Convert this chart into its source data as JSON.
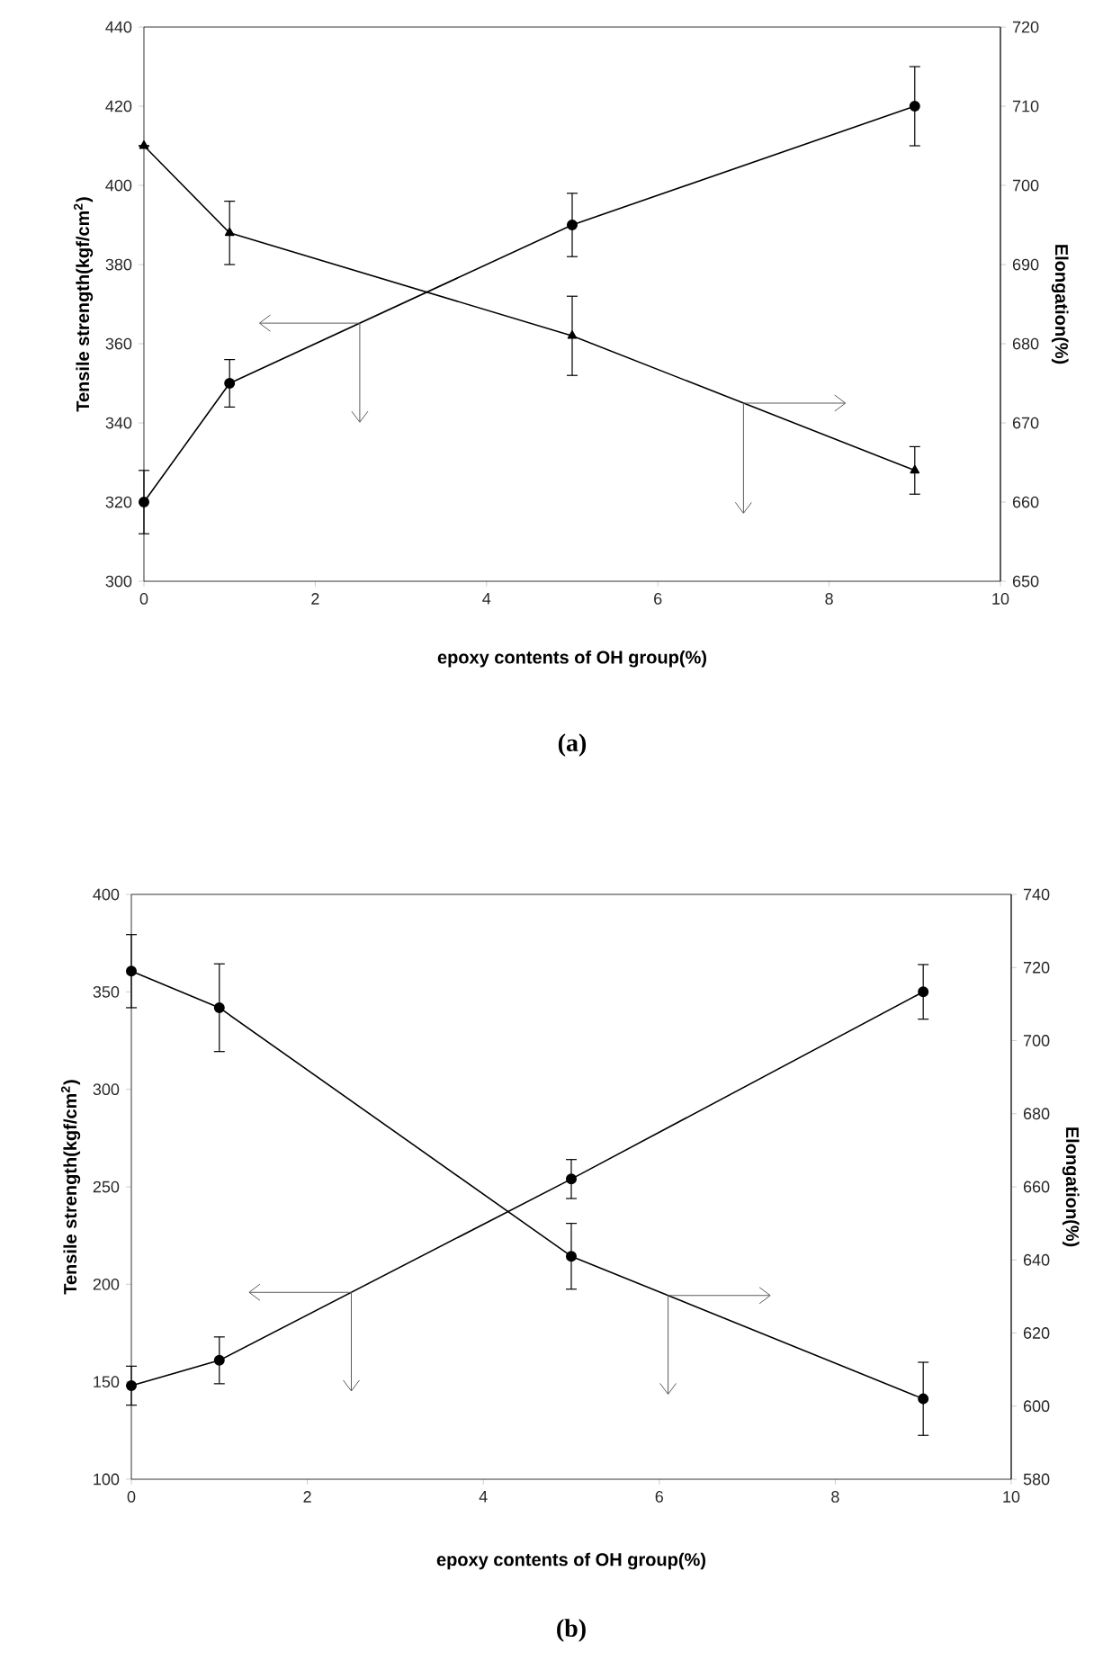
{
  "chart_data": [
    {
      "type": "line",
      "title": "(a)",
      "xlabel": "epoxy contents of OH group(%)",
      "ylabel": "Tensile strength(kgf/cm$^{2}$)",
      "y2label": "Elongation(%)",
      "x": [
        0,
        1,
        5,
        9
      ],
      "xlim": [
        0,
        10
      ],
      "xticks": [
        0,
        2,
        4,
        6,
        8,
        10
      ],
      "ylim": [
        300,
        440
      ],
      "yticks": [
        300,
        320,
        340,
        360,
        380,
        400,
        420,
        440
      ],
      "y2lim": [
        650,
        720
      ],
      "y2ticks": [
        650,
        660,
        670,
        680,
        690,
        700,
        710,
        720
      ],
      "series": [
        {
          "color": "#000000",
          "marker": "circle",
          "values": [
            320,
            350,
            390,
            420
          ],
          "errors": [
            8,
            6,
            8,
            10
          ]
        },
        {
          "color": "#000000",
          "marker": "triangle",
          "axis": "y2",
          "values": [
            705,
            694,
            681,
            664
          ],
          "errors": [
            null,
            4,
            5,
            3
          ]
        }
      ]
    },
    {
      "type": "line",
      "title": "(b)",
      "xlabel": "epoxy contents of OH group(%)",
      "ylabel": "Tensile strength(kgf/cm$^{2}$)",
      "y2label": "Elongation(%)",
      "x": [
        0,
        1,
        5,
        9
      ],
      "xlim": [
        0,
        10
      ],
      "xticks": [
        0,
        2,
        4,
        6,
        8,
        10
      ],
      "ylim": [
        100,
        400
      ],
      "yticks": [
        100,
        150,
        200,
        250,
        300,
        350,
        400
      ],
      "y2lim": [
        580,
        740
      ],
      "y2ticks": [
        580,
        600,
        620,
        640,
        660,
        680,
        700,
        720,
        740
      ],
      "series": [
        {
          "color": "#000000",
          "marker": "circle",
          "values": [
            148,
            161,
            254,
            350
          ],
          "errors": [
            10,
            12,
            10,
            14
          ]
        },
        {
          "color": "#000000",
          "marker": "circle",
          "axis": "y2",
          "values": [
            719,
            709,
            641,
            602
          ],
          "errors": [
            10,
            12,
            9,
            10
          ]
        }
      ]
    }
  ]
}
